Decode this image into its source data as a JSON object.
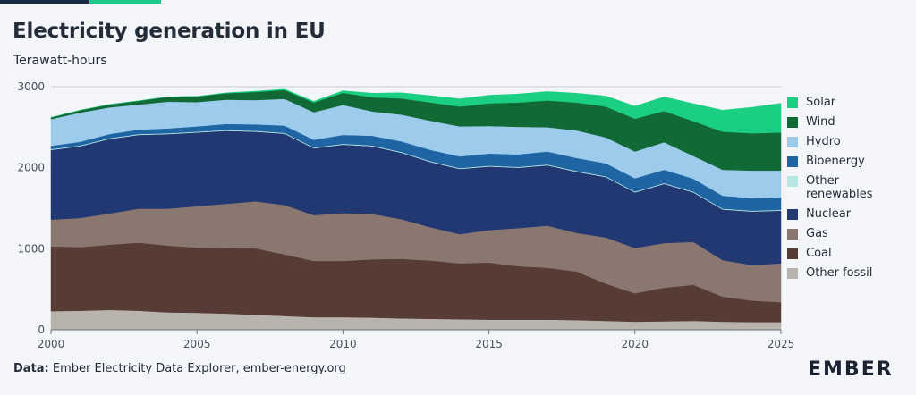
{
  "header": {
    "title": "Electricity generation in EU",
    "subtitle": "Terawatt-hours"
  },
  "footer": {
    "source_label": "Data:",
    "source_text": "Ember Electricity Data Explorer, ember-energy.org",
    "logo_text": "EMBER"
  },
  "chart_data": {
    "type": "area",
    "stacked": true,
    "title": "Electricity generation in EU",
    "subtitle": "Terawatt-hours",
    "xlabel": "",
    "ylabel": "",
    "xlim": [
      2000,
      2025
    ],
    "ylim": [
      0,
      3000
    ],
    "x_ticks": [
      2000,
      2005,
      2010,
      2015,
      2020,
      2025
    ],
    "y_ticks": [
      0,
      1000,
      2000,
      3000
    ],
    "grid": "horizontal",
    "legend_position": "right",
    "x": [
      2000,
      2001,
      2002,
      2003,
      2004,
      2005,
      2006,
      2007,
      2008,
      2009,
      2010,
      2011,
      2012,
      2013,
      2014,
      2015,
      2016,
      2017,
      2018,
      2019,
      2020,
      2021,
      2022,
      2023,
      2024,
      2025
    ],
    "series": [
      {
        "name": "Other fossil",
        "color": "#b9b3ae",
        "values": [
          230,
          235,
          245,
          235,
          215,
          210,
          200,
          185,
          170,
          155,
          155,
          150,
          140,
          135,
          130,
          125,
          125,
          125,
          120,
          110,
          100,
          105,
          110,
          100,
          95,
          95
        ]
      },
      {
        "name": "Coal",
        "color": "#563c35",
        "values": [
          800,
          785,
          805,
          840,
          825,
          805,
          810,
          820,
          760,
          695,
          695,
          720,
          735,
          720,
          690,
          705,
          660,
          640,
          600,
          460,
          350,
          415,
          445,
          310,
          265,
          245
        ]
      },
      {
        "name": "Gas",
        "color": "#8a7770",
        "values": [
          330,
          360,
          385,
          420,
          455,
          510,
          545,
          580,
          610,
          565,
          590,
          560,
          490,
          410,
          360,
          400,
          470,
          520,
          475,
          570,
          560,
          550,
          530,
          450,
          440,
          480
        ]
      },
      {
        "name": "Nuclear",
        "color": "#213873",
        "values": [
          860,
          885,
          920,
          910,
          920,
          910,
          900,
          860,
          880,
          825,
          845,
          835,
          820,
          805,
          805,
          785,
          745,
          745,
          755,
          745,
          685,
          730,
          610,
          625,
          660,
          650
        ]
      },
      {
        "name": "Other renewables",
        "color": "#b7e7e4",
        "values": [
          10,
          10,
          10,
          10,
          10,
          10,
          10,
          10,
          10,
          10,
          10,
          10,
          10,
          10,
          10,
          10,
          10,
          10,
          10,
          10,
          10,
          10,
          10,
          10,
          10,
          10
        ]
      },
      {
        "name": "Bioenergy",
        "color": "#1f64a3",
        "values": [
          40,
          45,
          50,
          55,
          60,
          65,
          75,
          80,
          90,
          95,
          110,
          120,
          130,
          140,
          145,
          150,
          155,
          160,
          160,
          160,
          165,
          165,
          160,
          160,
          155,
          155
        ]
      },
      {
        "name": "Hydro",
        "color": "#9ccbeb",
        "values": [
          330,
          360,
          330,
          310,
          330,
          300,
          300,
          300,
          330,
          340,
          370,
          300,
          330,
          360,
          370,
          340,
          340,
          300,
          340,
          320,
          330,
          340,
          280,
          320,
          340,
          330
        ]
      },
      {
        "name": "Wind",
        "color": "#116936",
        "values": [
          20,
          30,
          35,
          45,
          60,
          70,
          80,
          100,
          110,
          120,
          150,
          175,
          200,
          225,
          245,
          280,
          300,
          330,
          345,
          380,
          405,
          385,
          430,
          470,
          460,
          470
        ]
      },
      {
        "name": "Solar",
        "color": "#1bcf82",
        "values": [
          0,
          0,
          0,
          0,
          0,
          0,
          5,
          10,
          10,
          15,
          25,
          50,
          70,
          85,
          95,
          100,
          105,
          110,
          115,
          130,
          155,
          175,
          215,
          265,
          320,
          360
        ]
      }
    ]
  }
}
